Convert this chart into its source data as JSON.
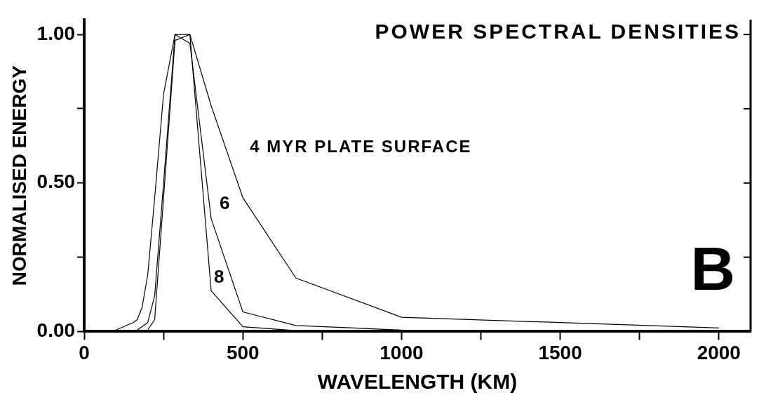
{
  "chart_data": {
    "type": "line",
    "title": "POWER SPECTRAL DENSITIES",
    "xlabel": "WAVELENGTH (KM)",
    "ylabel": "NORMALISED ENERGY",
    "annotations": [
      "B"
    ],
    "series": [
      {
        "name": "4 MYR PLATE SURFACE",
        "color": "#000000",
        "x": [
          50,
          100,
          154,
          167,
          182,
          200,
          222,
          250,
          286,
          333,
          400,
          500,
          667,
          1000,
          2000
        ],
        "values": [
          0,
          0.005,
          0.03,
          0.04,
          0.08,
          0.19,
          0.45,
          0.8,
          1.0,
          1.0,
          0.76,
          0.45,
          0.18,
          0.048,
          0.012
        ]
      },
      {
        "name": "6",
        "color": "#000000",
        "x": [
          125,
          167,
          200,
          222,
          250,
          286,
          333,
          400,
          500,
          667,
          1000,
          2000
        ],
        "values": [
          0,
          0.005,
          0.03,
          0.12,
          0.5,
          1.0,
          0.97,
          0.38,
          0.066,
          0.02,
          0.005,
          0
        ]
      },
      {
        "name": "8",
        "color": "#000000",
        "x": [
          154,
          200,
          222,
          250,
          286,
          333,
          400,
          500,
          667,
          1000
        ],
        "values": [
          0,
          0.005,
          0.04,
          0.45,
          0.98,
          1.0,
          0.137,
          0.016,
          0.003,
          0
        ]
      }
    ],
    "xlim": [
      0,
      2100
    ],
    "xticks": [
      0,
      {
        "value": 250,
        "label": null
      },
      500,
      {
        "value": 750,
        "label": null
      },
      1000,
      {
        "value": 1250,
        "label": null
      },
      1500,
      {
        "value": 1750,
        "label": null
      },
      2000
    ],
    "ylim": [
      0,
      1.05
    ],
    "yticks": [
      "0.00",
      {
        "value": 0.25,
        "label": null
      },
      {
        "value": 0.5,
        "label": "0.50"
      },
      {
        "value": 0.75,
        "label": null
      },
      {
        "value": 1,
        "label": "1.00"
      }
    ],
    "grid": false,
    "legend": false,
    "marker": "none",
    "line_style": "solid"
  }
}
